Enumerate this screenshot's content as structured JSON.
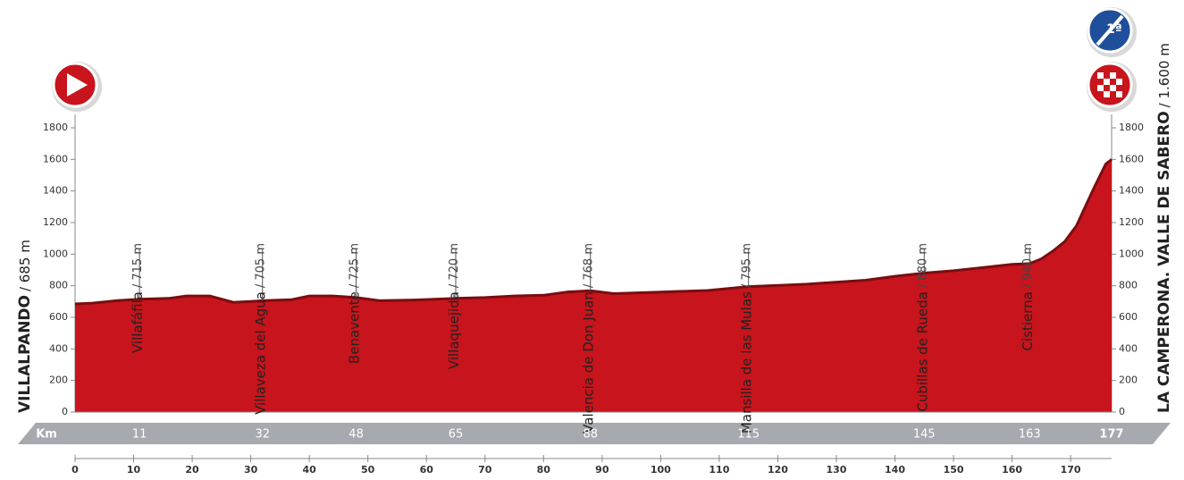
{
  "chart_data": {
    "type": "area",
    "color": "#c8141c",
    "edge_color": "#7a0d10",
    "x": [
      0,
      3,
      7,
      11,
      16,
      19,
      23,
      27,
      30,
      32,
      37,
      40,
      44,
      48,
      52,
      58,
      65,
      70,
      75,
      80,
      84,
      88,
      92,
      100,
      108,
      115,
      125,
      135,
      140,
      145,
      150,
      155,
      160,
      163,
      165,
      167,
      169,
      171,
      172,
      174,
      176,
      177
    ],
    "values": [
      685,
      690,
      705,
      715,
      720,
      735,
      735,
      695,
      700,
      705,
      712,
      735,
      735,
      725,
      705,
      710,
      720,
      725,
      735,
      740,
      760,
      768,
      750,
      760,
      770,
      795,
      810,
      835,
      860,
      880,
      895,
      915,
      935,
      940,
      970,
      1020,
      1080,
      1180,
      1260,
      1420,
      1570,
      1600
    ],
    "xlim": [
      0,
      177
    ],
    "ylim": [
      0,
      1800
    ],
    "yticks": [
      0,
      200,
      400,
      600,
      800,
      1000,
      1200,
      1400,
      1600,
      1800
    ],
    "xticks": [
      0,
      10,
      20,
      30,
      40,
      50,
      60,
      70,
      80,
      90,
      100,
      110,
      120,
      130,
      140,
      150,
      160,
      170
    ],
    "km_label": "Km",
    "start": {
      "name": "VILLALPANDO",
      "label": "/ 685 m"
    },
    "finish": {
      "name": "LA CAMPERONA. VALLE DE SABERO",
      "label": "/ 1.600 m",
      "km": 177
    },
    "category": "1ª",
    "waypoints": [
      {
        "name": "Villafáfila",
        "label": "/ 715 m",
        "km": 11,
        "altitude": 715
      },
      {
        "name": "Villaveza del Agua",
        "label": "/ 705 m",
        "km": 32,
        "altitude": 705
      },
      {
        "name": "Benavente",
        "label": "/ 725 m",
        "km": 48,
        "altitude": 725
      },
      {
        "name": "Villaquejida",
        "label": "/ 720 m",
        "km": 65,
        "altitude": 720
      },
      {
        "name": "Valencia de Don Juan",
        "label": "/ 768 m",
        "km": 88,
        "altitude": 768
      },
      {
        "name": "Mansilla de las Mulas",
        "label": "/ 795 m",
        "km": 115,
        "altitude": 795
      },
      {
        "name": "Cubillas de Rueda",
        "label": "/ 880 m",
        "km": 145,
        "altitude": 880
      },
      {
        "name": "Cistierna",
        "label": "/ 940 m",
        "km": 163,
        "altitude": 940
      }
    ]
  }
}
